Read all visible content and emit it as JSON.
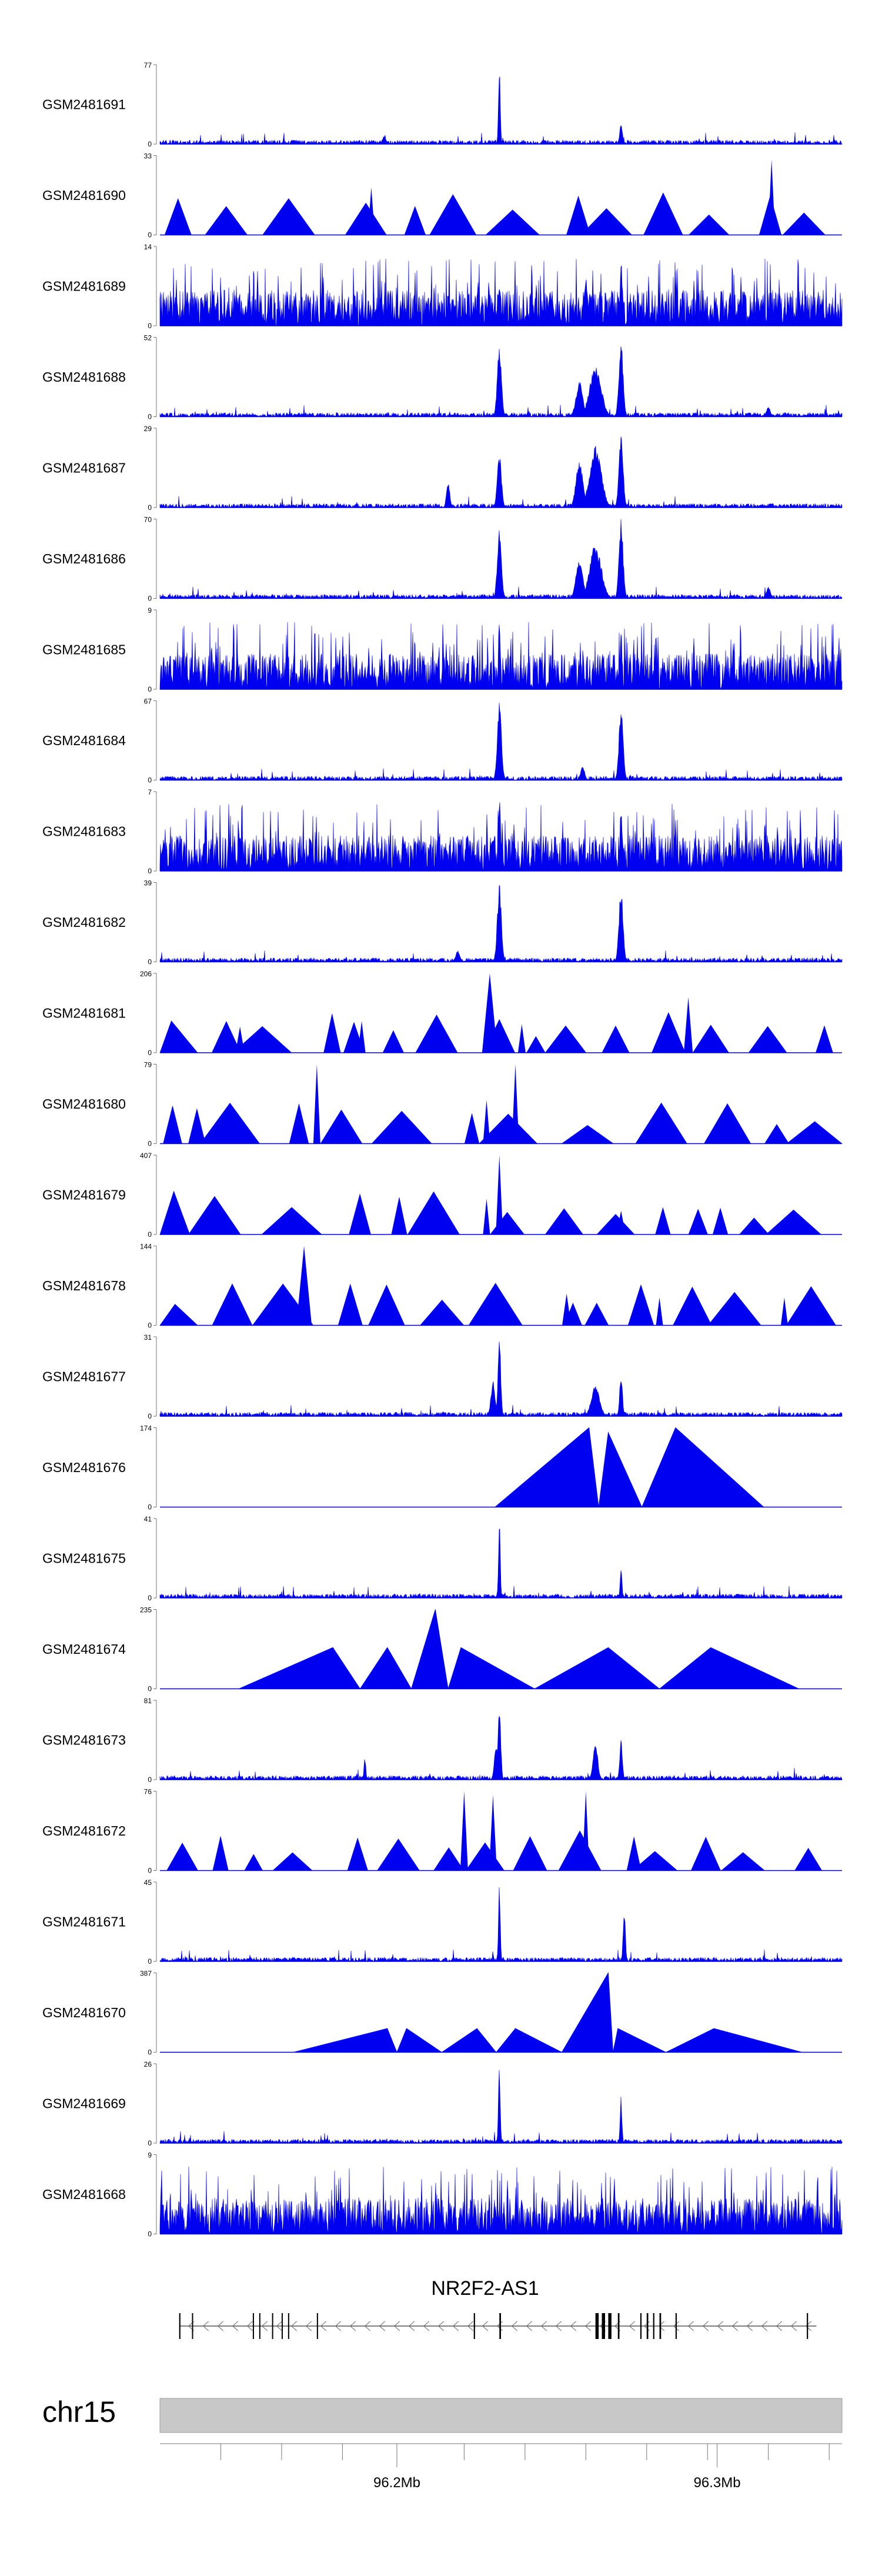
{
  "chart_data": {
    "type": "area",
    "title": "",
    "xlabel": "",
    "ylabel": "",
    "region": {
      "chrom": "chr15",
      "start": 96126000,
      "end": 96339000
    },
    "fill_color": "#0000f0",
    "tracks": [
      {
        "id": "GSM2481691",
        "ymax": "77",
        "ymin": "0",
        "style": "signal",
        "peaks": [
          [
            96232000,
            1.0,
            400
          ],
          [
            96270000,
            0.25,
            600
          ],
          [
            96196000,
            0.1,
            800
          ]
        ]
      },
      {
        "id": "GSM2481690",
        "ymax": "33",
        "ymin": "0",
        "style": "sparse",
        "peaks": [
          [
            96317000,
            0.95,
            500
          ],
          [
            96192000,
            0.6,
            500
          ]
        ]
      },
      {
        "id": "GSM2481689",
        "ymax": "14",
        "ymin": "0",
        "style": "noisy",
        "peaks": [
          [
            96270000,
            1.0,
            400
          ],
          [
            96259000,
            0.65,
            800
          ],
          [
            96232000,
            0.55,
            600
          ],
          [
            96248000,
            0.4,
            1200
          ]
        ]
      },
      {
        "id": "GSM2481688",
        "ymax": "52",
        "ymin": "0",
        "style": "signal",
        "peaks": [
          [
            96232000,
            0.95,
            900
          ],
          [
            96270000,
            1.0,
            900
          ],
          [
            96262000,
            0.65,
            2500
          ],
          [
            96257000,
            0.45,
            1500
          ],
          [
            96316000,
            0.12,
            900
          ]
        ]
      },
      {
        "id": "GSM2481687",
        "ymax": "29",
        "ymin": "0",
        "style": "signal",
        "peaks": [
          [
            96232000,
            0.7,
            900
          ],
          [
            96270000,
            1.0,
            900
          ],
          [
            96262000,
            0.8,
            2500
          ],
          [
            96257000,
            0.6,
            1500
          ],
          [
            96216000,
            0.35,
            700
          ]
        ]
      },
      {
        "id": "GSM2481686",
        "ymax": "70",
        "ymin": "0",
        "style": "signal",
        "peaks": [
          [
            96232000,
            0.9,
            900
          ],
          [
            96270000,
            1.0,
            900
          ],
          [
            96262000,
            0.7,
            2500
          ],
          [
            96257000,
            0.5,
            1500
          ],
          [
            96316000,
            0.15,
            900
          ]
        ]
      },
      {
        "id": "GSM2481685",
        "ymax": "9",
        "ymin": "0",
        "style": "noisy",
        "peaks": [
          [
            96232000,
            1.0,
            400
          ],
          [
            96270000,
            0.8,
            400
          ]
        ]
      },
      {
        "id": "GSM2481684",
        "ymax": "67",
        "ymin": "0",
        "style": "signal",
        "peaks": [
          [
            96232000,
            1.0,
            900
          ],
          [
            96270000,
            0.95,
            900
          ],
          [
            96258000,
            0.18,
            900
          ]
        ]
      },
      {
        "id": "GSM2481683",
        "ymax": "7",
        "ymin": "0",
        "style": "noisy",
        "peaks": [
          [
            96232000,
            1.0,
            500
          ],
          [
            96270000,
            0.85,
            500
          ],
          [
            96222000,
            0.5,
            800
          ]
        ]
      },
      {
        "id": "GSM2481682",
        "ymax": "39",
        "ymin": "0",
        "style": "signal",
        "peaks": [
          [
            96232000,
            1.0,
            900
          ],
          [
            96270000,
            0.95,
            900
          ],
          [
            96219000,
            0.15,
            900
          ]
        ]
      },
      {
        "id": "GSM2481681",
        "ymax": "206",
        "ymin": "0",
        "style": "sparse",
        "peaks": [
          [
            96229000,
            1.0,
            1200
          ],
          [
            96151000,
            0.33,
            700
          ],
          [
            96189000,
            0.4,
            600
          ],
          [
            96291000,
            0.7,
            700
          ],
          [
            96239000,
            0.36,
            600
          ]
        ]
      },
      {
        "id": "GSM2481680",
        "ymax": "79",
        "ymin": "0",
        "style": "sparse",
        "peaks": [
          [
            96175000,
            1.0,
            500
          ],
          [
            96237000,
            1.0,
            500
          ],
          [
            96228000,
            0.55,
            500
          ]
        ]
      },
      {
        "id": "GSM2481679",
        "ymax": "407",
        "ymin": "0",
        "style": "sparse",
        "peaks": [
          [
            96232000,
            1.0,
            500
          ],
          [
            96270000,
            0.3,
            700
          ],
          [
            96190000,
            0.2,
            600
          ],
          [
            96228000,
            0.45,
            500
          ]
        ]
      },
      {
        "id": "GSM2481678",
        "ymax": "144",
        "ymin": "0",
        "style": "sparse",
        "peaks": [
          [
            96171000,
            1.0,
            1200
          ],
          [
            96253000,
            0.4,
            700
          ],
          [
            96282000,
            0.35,
            500
          ],
          [
            96321000,
            0.35,
            500
          ]
        ]
      },
      {
        "id": "GSM2481677",
        "ymax": "31",
        "ymin": "0",
        "style": "signal",
        "peaks": [
          [
            96232000,
            1.0,
            600
          ],
          [
            96270000,
            0.55,
            600
          ],
          [
            96230000,
            0.45,
            900
          ],
          [
            96262000,
            0.4,
            1800
          ]
        ]
      },
      {
        "id": "GSM2481676",
        "ymax": "174",
        "ymin": "0",
        "style": "triangles",
        "peaks": [
          [
            96260000,
            1.0,
            0
          ],
          [
            96266000,
            0.94,
            0
          ],
          [
            96287000,
            1.0,
            0
          ]
        ]
      },
      {
        "id": "GSM2481675",
        "ymax": "41",
        "ymin": "0",
        "style": "signal",
        "peaks": [
          [
            96232000,
            1.0,
            400
          ],
          [
            96270000,
            0.4,
            400
          ]
        ]
      },
      {
        "id": "GSM2481674",
        "ymax": "235",
        "ymin": "0",
        "style": "triangles",
        "peaks": [
          [
            96180000,
            0.52,
            0
          ],
          [
            96197000,
            0.52,
            0
          ],
          [
            96212000,
            1.0,
            0
          ],
          [
            96220000,
            0.52,
            0
          ],
          [
            96266000,
            0.52,
            0
          ],
          [
            96298000,
            0.52,
            0
          ]
        ]
      },
      {
        "id": "GSM2481673",
        "ymax": "81",
        "ymin": "0",
        "style": "signal",
        "peaks": [
          [
            96232000,
            1.0,
            600
          ],
          [
            96270000,
            0.5,
            600
          ],
          [
            96262000,
            0.5,
            1000
          ],
          [
            96231000,
            0.45,
            800
          ],
          [
            96190000,
            0.3,
            400
          ]
        ]
      },
      {
        "id": "GSM2481672",
        "ymax": "76",
        "ymin": "0",
        "style": "sparse",
        "peaks": [
          [
            96221000,
            1.0,
            600
          ],
          [
            96230000,
            0.95,
            600
          ],
          [
            96259000,
            1.0,
            500
          ]
        ]
      },
      {
        "id": "GSM2481671",
        "ymax": "45",
        "ymin": "0",
        "style": "signal",
        "peaks": [
          [
            96232000,
            1.0,
            400
          ],
          [
            96271000,
            0.65,
            500
          ]
        ]
      },
      {
        "id": "GSM2481670",
        "ymax": "387",
        "ymin": "0",
        "style": "triangles",
        "peaks": [
          [
            96197000,
            0.3,
            0
          ],
          [
            96203000,
            0.3,
            0
          ],
          [
            96225000,
            0.3,
            0
          ],
          [
            96237000,
            0.3,
            0
          ],
          [
            96266000,
            1.0,
            0
          ],
          [
            96269000,
            0.3,
            0
          ],
          [
            96299000,
            0.3,
            0
          ]
        ]
      },
      {
        "id": "GSM2481669",
        "ymax": "26",
        "ymin": "0",
        "style": "signal",
        "peaks": [
          [
            96232000,
            1.0,
            400
          ],
          [
            96270000,
            0.6,
            400
          ]
        ]
      },
      {
        "id": "GSM2481668",
        "ymax": "9",
        "ymin": "0",
        "style": "noisy",
        "peaks": []
      }
    ],
    "gene": {
      "name": "NR2F2-AS1",
      "strand": "-",
      "start": 96132000,
      "end": 96331000,
      "exons": [
        [
          96132000,
          96132400
        ],
        [
          96136000,
          96136300
        ],
        [
          96155000,
          96155300
        ],
        [
          96157000,
          96157300
        ],
        [
          96161000,
          96161300
        ],
        [
          96164000,
          96164300
        ],
        [
          96166000,
          96166300
        ],
        [
          96175000,
          96175300
        ],
        [
          96224000,
          96224400
        ],
        [
          96232000,
          96232500
        ],
        [
          96262000,
          96263000
        ],
        [
          96264000,
          96265000
        ],
        [
          96266000,
          96267000
        ],
        [
          96269000,
          96269500
        ],
        [
          96276000,
          96276400
        ],
        [
          96278000,
          96278500
        ],
        [
          96280000,
          96280400
        ],
        [
          96282000,
          96282500
        ],
        [
          96287000,
          96287400
        ],
        [
          96328000,
          96328400
        ]
      ]
    },
    "axis": {
      "chrom_label": "chr15",
      "ticks": [
        96145000,
        96164000,
        96183000,
        96200000,
        96221000,
        96240000,
        96259000,
        96278000,
        96297000,
        96316000,
        96335000
      ],
      "tick_labels": [
        {
          "pos": 96200000,
          "label": "96.2Mb"
        },
        {
          "pos": 96300000,
          "label": "96.3Mb"
        }
      ]
    }
  }
}
